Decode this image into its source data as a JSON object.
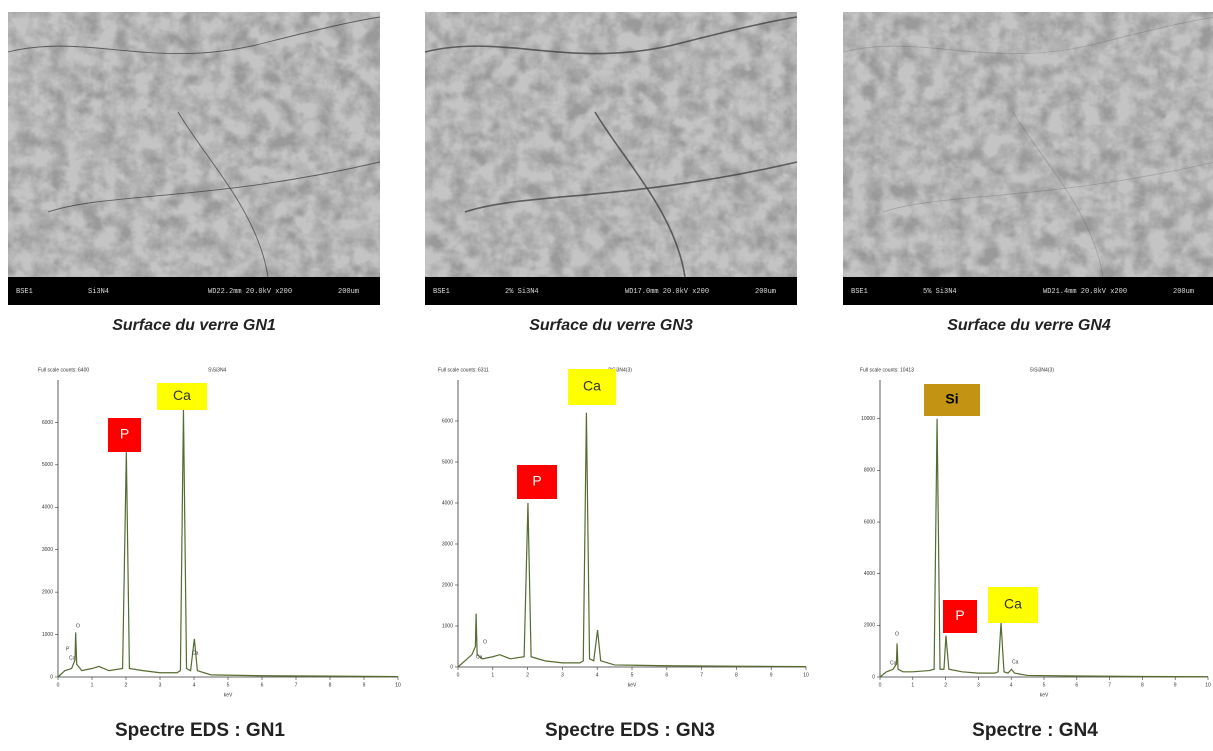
{
  "images": [
    {
      "caption": "Surface du verre GN1",
      "info": [
        "BSE1",
        "Si3N4",
        "WD22.2mm 20.0kV x200",
        "200um"
      ]
    },
    {
      "caption": "Surface du verre GN3",
      "info": [
        "BSE1",
        "2% Si3N4",
        "WD17.0mm 20.0kV x200",
        "200um"
      ]
    },
    {
      "caption": "Surface du verre GN4",
      "info": [
        "BSE1",
        "5% Si3N4",
        "WD21.4mm 20.0kV x200",
        "200um"
      ]
    }
  ],
  "chart_data": [
    {
      "type": "line",
      "title": "Full scale counts: 6400",
      "subtitle": "S\\Si3N4",
      "caption": "Spectre EDS : GN1",
      "x_label": "keV",
      "x": [
        0,
        0.2,
        0.4,
        0.5,
        0.52,
        0.55,
        0.7,
        1.0,
        1.2,
        1.5,
        1.9,
        2.01,
        2.1,
        2.5,
        3.0,
        3.5,
        3.6,
        3.69,
        3.78,
        3.9,
        4.01,
        4.1,
        4.5,
        6,
        8,
        10
      ],
      "values": [
        0,
        150,
        200,
        400,
        1050,
        300,
        150,
        200,
        250,
        150,
        200,
        5300,
        200,
        150,
        100,
        100,
        150,
        6300,
        200,
        150,
        900,
        150,
        50,
        30,
        20,
        10
      ],
      "color": "#556b2f",
      "xlim": [
        0,
        10
      ],
      "xticks": [
        0,
        1,
        2,
        3,
        4,
        5,
        6,
        7,
        8,
        9,
        10
      ],
      "ylim": [
        0,
        7000
      ],
      "yticks": [
        0,
        1000,
        2000,
        3000,
        4000,
        5000,
        6000
      ],
      "annotations": [
        {
          "text": "P",
          "color": "#ff0000"
        },
        {
          "text": "Ca",
          "color": "#ffff00"
        }
      ],
      "peak_labels": [
        "O",
        "P",
        "Ca",
        "Ca"
      ]
    },
    {
      "type": "line",
      "title": "Full scale counts: 6311",
      "subtitle": "2\\Si3N4(3)",
      "caption": "Spectre EDS : GN3",
      "x_label": "keV",
      "x": [
        0,
        0.2,
        0.4,
        0.5,
        0.52,
        0.55,
        0.7,
        1.0,
        1.2,
        1.5,
        1.9,
        2.01,
        2.1,
        2.5,
        3.0,
        3.5,
        3.6,
        3.69,
        3.78,
        3.9,
        4.01,
        4.1,
        4.5,
        6,
        8,
        10
      ],
      "values": [
        0,
        150,
        300,
        500,
        1300,
        300,
        200,
        250,
        300,
        200,
        250,
        4000,
        250,
        150,
        100,
        100,
        150,
        6200,
        200,
        150,
        900,
        150,
        50,
        30,
        20,
        10
      ],
      "color": "#556b2f",
      "xlim": [
        0,
        10
      ],
      "xticks": [
        0,
        1,
        2,
        3,
        4,
        5,
        6,
        7,
        8,
        9,
        10
      ],
      "ylim": [
        0,
        7000
      ],
      "yticks": [
        0,
        1000,
        2000,
        3000,
        4000,
        5000,
        6000
      ],
      "annotations": [
        {
          "text": "P",
          "color": "#ff0000"
        },
        {
          "text": "Ca",
          "color": "#ffff00"
        }
      ],
      "peak_labels": [
        "O",
        "Ca"
      ]
    },
    {
      "type": "line",
      "title": "Full scale counts: 10413",
      "subtitle": "5\\Si3N4(3)",
      "caption": "Spectre : GN4",
      "x_label": "keV",
      "x": [
        0,
        0.2,
        0.4,
        0.5,
        0.52,
        0.55,
        0.7,
        1.0,
        1.5,
        1.65,
        1.74,
        1.83,
        1.95,
        2.01,
        2.1,
        2.5,
        3.0,
        3.5,
        3.6,
        3.69,
        3.78,
        3.9,
        4.01,
        4.1,
        4.5,
        6,
        8,
        10
      ],
      "values": [
        0,
        200,
        300,
        500,
        1300,
        300,
        200,
        200,
        250,
        300,
        10000,
        300,
        300,
        1600,
        300,
        200,
        150,
        150,
        200,
        2100,
        200,
        150,
        300,
        150,
        60,
        40,
        20,
        10
      ],
      "color": "#556b2f",
      "xlim": [
        0,
        10
      ],
      "xticks": [
        0,
        1,
        2,
        3,
        4,
        5,
        6,
        7,
        8,
        9,
        10
      ],
      "ylim": [
        0,
        11500
      ],
      "yticks": [
        0,
        2000,
        4000,
        6000,
        8000,
        10000
      ],
      "annotations": [
        {
          "text": "Si",
          "color": "#c39314"
        },
        {
          "text": "P",
          "color": "#ff0000"
        },
        {
          "text": "Ca",
          "color": "#ffff00"
        }
      ],
      "peak_labels": [
        "O",
        "Ca",
        "Ca"
      ]
    }
  ]
}
